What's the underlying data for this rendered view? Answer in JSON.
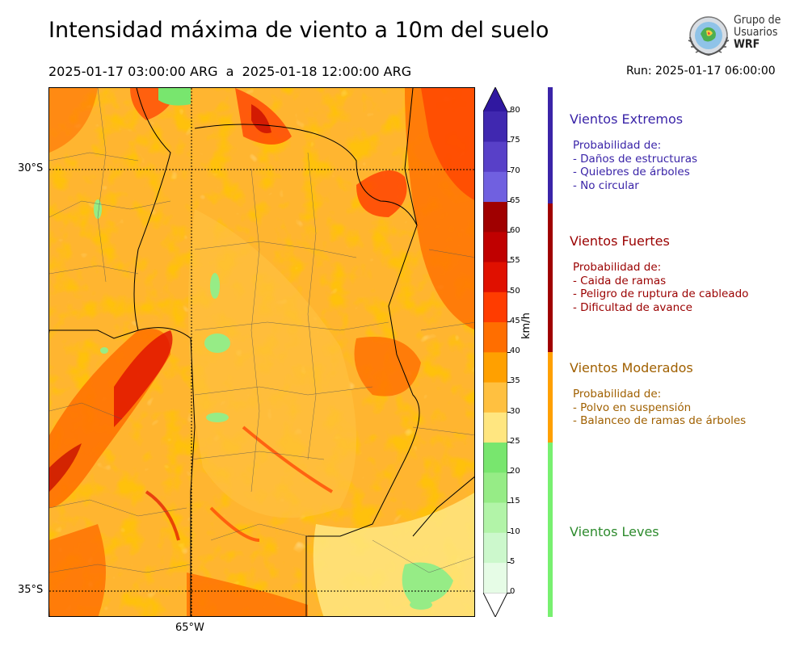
{
  "header": {
    "title": "Intensidad máxima de viento a 10m del suelo",
    "period": "2025-01-17 03:00:00 ARG  a  2025-01-18 12:00:00 ARG",
    "run": "Run: 2025-01-17 06:00:00"
  },
  "logo": {
    "line1": "Grupo de",
    "line2": "Usuarios",
    "line3": "WRF"
  },
  "map": {
    "lat_labels": [
      "30°S",
      "35°S"
    ],
    "lon_labels": [
      "65°W"
    ]
  },
  "colorbar": {
    "units": "km/h",
    "ticks": [
      "0",
      "5",
      "10",
      "15",
      "20",
      "25",
      "30",
      "35",
      "40",
      "45",
      "50",
      "55",
      "60",
      "65",
      "70",
      "75",
      "80"
    ],
    "colors": [
      "#ffffff",
      "#e6fce6",
      "#ccf8cc",
      "#b2f4a8",
      "#96ec86",
      "#78e66e",
      "#ffe680",
      "#ffc040",
      "#ffa000",
      "#ff6e00",
      "#ff3c00",
      "#e01000",
      "#c00000",
      "#a00000",
      "#7060e0",
      "#5840c8",
      "#4028b0"
    ],
    "over_color": "#3018a0"
  },
  "categories": [
    {
      "title": "Vientos Extremos",
      "color": "#3a24a8",
      "bar_color": "#3a24a8",
      "lines": [
        "Probabilidad de:",
        "- Daños de estructuras",
        "- Quiebres de árboles",
        "- No circular"
      ]
    },
    {
      "title": "Vientos Fuertes",
      "color": "#9a0000",
      "bar_color": "#a00000",
      "lines": [
        "Probabilidad de:",
        "- Caida de ramas",
        "- Peligro de ruptura de cableado",
        "- Dificultad de avance"
      ]
    },
    {
      "title": "Vientos Moderados",
      "color": "#a06000",
      "bar_color": "#ffa000",
      "lines": [
        "Probabilidad de:",
        "- Polvo en suspensión",
        "- Balanceo de ramas de árboles"
      ]
    },
    {
      "title": "Vientos Leves",
      "color": "#2e8b2e",
      "bar_color": "#78f070",
      "lines": []
    }
  ]
}
